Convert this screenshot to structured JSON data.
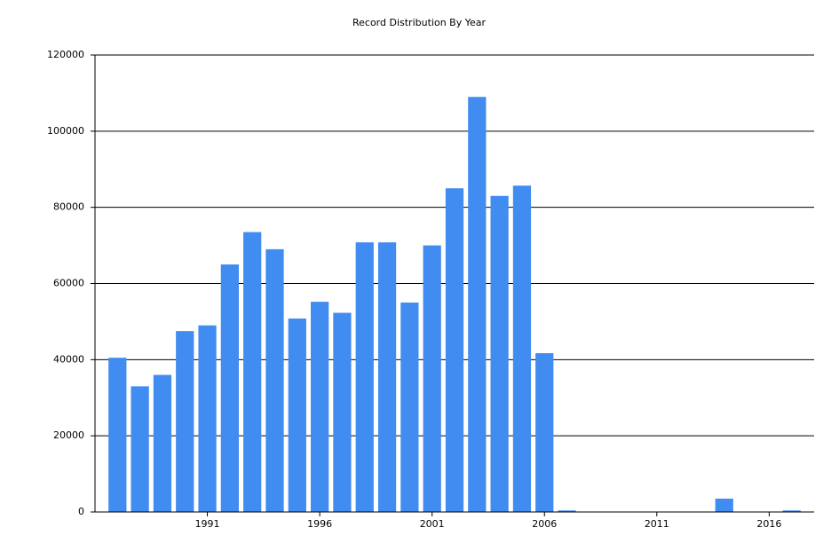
{
  "chart_data": {
    "type": "bar",
    "title": "Record Distribution By Year",
    "x": [
      1987,
      1988,
      1989,
      1990,
      1991,
      1992,
      1993,
      1994,
      1995,
      1996,
      1997,
      1998,
      1999,
      2000,
      2001,
      2002,
      2003,
      2004,
      2005,
      2006,
      2007,
      2014,
      2017
    ],
    "values": [
      40500,
      33000,
      36000,
      47500,
      49000,
      65000,
      73500,
      69000,
      50800,
      55200,
      52300,
      70800,
      70800,
      55000,
      70000,
      85000,
      109000,
      83000,
      85700,
      41700,
      400,
      3500,
      400
    ],
    "color": "#418cf0",
    "xlim": [
      1986,
      2018
    ],
    "xticks": [
      1991,
      1996,
      2001,
      2006,
      2011,
      2016
    ],
    "ylim": [
      0,
      120000
    ],
    "yticks": [
      0,
      20000,
      40000,
      60000,
      80000,
      100000,
      120000
    ],
    "grid": true
  }
}
